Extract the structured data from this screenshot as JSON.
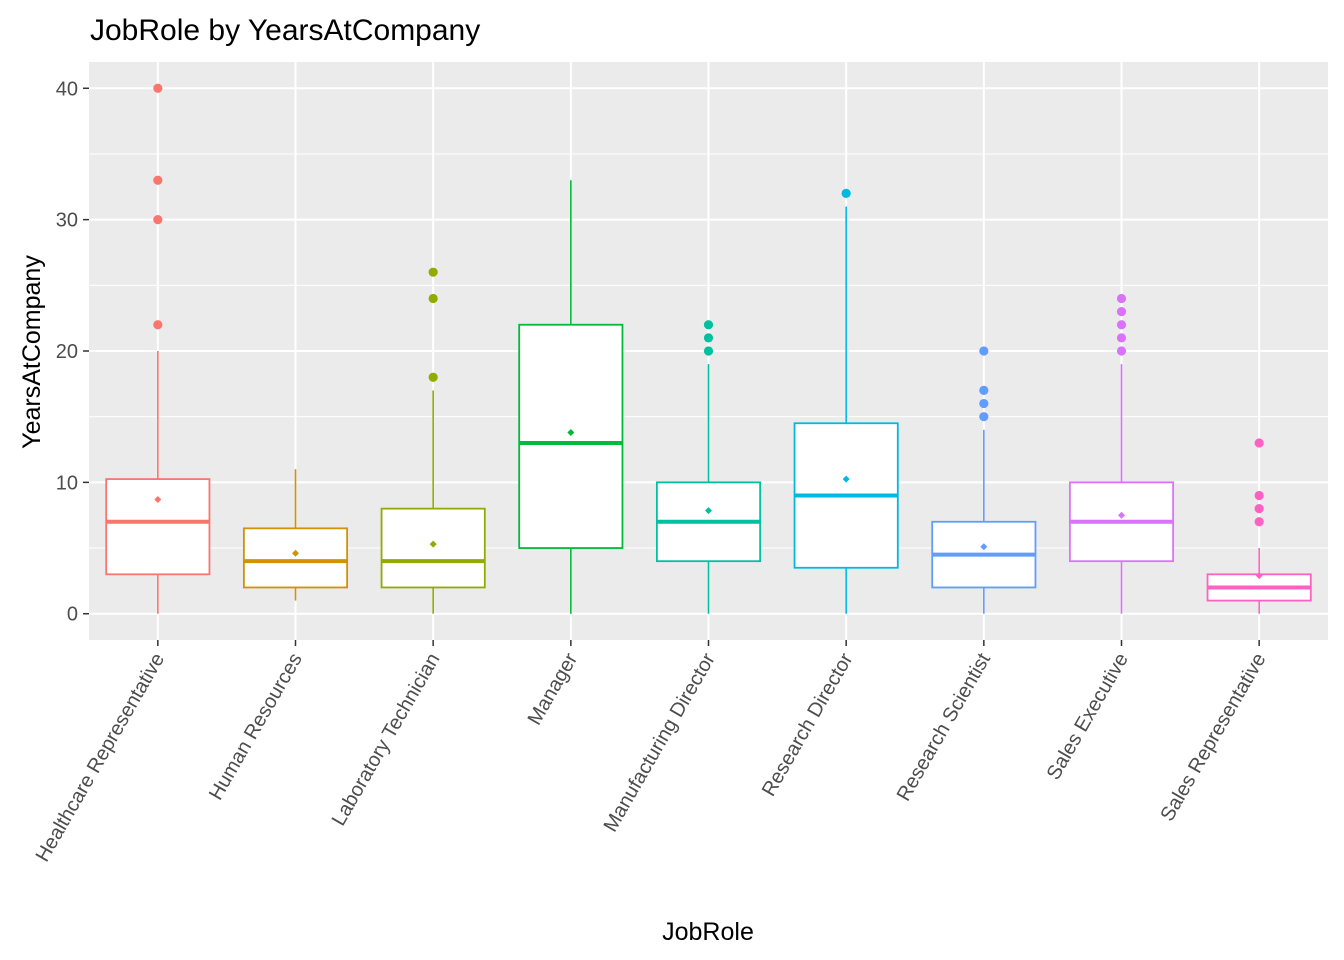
{
  "chart_data": {
    "type": "box",
    "title": "JobRole by YearsAtCompany",
    "xlabel": "JobRole",
    "ylabel": "YearsAtCompany",
    "ylim": [
      -2,
      42
    ],
    "yticks": [
      0,
      10,
      20,
      30,
      40
    ],
    "ytick_labels": [
      "0",
      "10",
      "20",
      "30",
      "40"
    ],
    "grid": true,
    "legend": "none",
    "categories": [
      "Healthcare Representative",
      "Human Resources",
      "Laboratory Technician",
      "Manager",
      "Manufacturing Director",
      "Research Director",
      "Research Scientist",
      "Sales Executive",
      "Sales Representative"
    ],
    "boxes": [
      {
        "category": "Healthcare Representative",
        "color": "#F8766D",
        "whisker_low": 0,
        "q1": 3,
        "median": 7,
        "q3": 10.25,
        "whisker_high": 20,
        "mean": 8.7,
        "outliers": [
          22,
          30,
          33,
          40
        ]
      },
      {
        "category": "Human Resources",
        "color": "#D39200",
        "whisker_low": 1,
        "q1": 2,
        "median": 4,
        "q3": 6.5,
        "whisker_high": 11,
        "mean": 4.6,
        "outliers": []
      },
      {
        "category": "Laboratory Technician",
        "color": "#93AA00",
        "whisker_low": 0,
        "q1": 2,
        "median": 4,
        "q3": 8,
        "whisker_high": 17,
        "mean": 5.3,
        "outliers": [
          18,
          24,
          26
        ]
      },
      {
        "category": "Manager",
        "color": "#00BA38",
        "whisker_low": 0,
        "q1": 5,
        "median": 13,
        "q3": 22,
        "whisker_high": 33,
        "mean": 13.8,
        "outliers": []
      },
      {
        "category": "Manufacturing Director",
        "color": "#00C19F",
        "whisker_low": 0,
        "q1": 4,
        "median": 7,
        "q3": 10,
        "whisker_high": 19,
        "mean": 7.85,
        "outliers": [
          20,
          21,
          22
        ]
      },
      {
        "category": "Research Director",
        "color": "#00B9E3",
        "whisker_low": 0,
        "q1": 3.5,
        "median": 9,
        "q3": 14.5,
        "whisker_high": 31,
        "mean": 10.25,
        "outliers": [
          32
        ]
      },
      {
        "category": "Research Scientist",
        "color": "#619CFF",
        "whisker_low": 0,
        "q1": 2,
        "median": 4.5,
        "q3": 7,
        "whisker_high": 14,
        "mean": 5.1,
        "outliers": [
          15,
          16,
          17,
          20
        ]
      },
      {
        "category": "Sales Executive",
        "color": "#DB72FB",
        "whisker_low": 0,
        "q1": 4,
        "median": 7,
        "q3": 10,
        "whisker_high": 19,
        "mean": 7.5,
        "outliers": [
          20,
          21,
          22,
          23,
          24
        ]
      },
      {
        "category": "Sales Representative",
        "color": "#FF61C3",
        "whisker_low": 0,
        "q1": 1,
        "median": 2,
        "q3": 3,
        "whisker_high": 5,
        "mean": 2.9,
        "outliers": [
          7,
          8,
          9,
          13
        ]
      }
    ],
    "panel_background": "#EBEBEB",
    "grid_color": "#FFFFFF"
  }
}
